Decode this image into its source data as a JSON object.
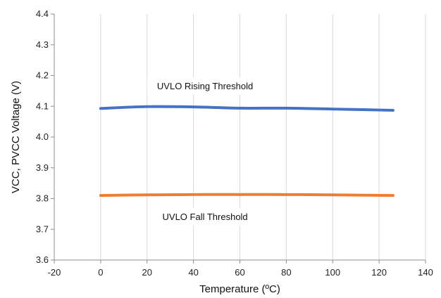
{
  "chart_data": {
    "type": "line",
    "title": "",
    "xlabel": "Temperature (ºC)",
    "ylabel": "VCC, PVCC Voltage (V)",
    "xlim": [
      -20,
      140
    ],
    "ylim": [
      3.6,
      4.4
    ],
    "xticks": [
      -20,
      0,
      20,
      40,
      60,
      80,
      100,
      120,
      140
    ],
    "yticks": [
      3.6,
      3.7,
      3.8,
      3.9,
      4.0,
      4.1,
      4.2,
      4.3,
      4.4
    ],
    "xtick_labels": [
      "-20",
      "0",
      "20",
      "40",
      "60",
      "80",
      "100",
      "120",
      "140"
    ],
    "ytick_labels": [
      "3.6",
      "3.7",
      "3.8",
      "3.9",
      "4.0",
      "4.1",
      "4.2",
      "4.3",
      "4.4"
    ],
    "grid": "vertical",
    "legend": "none",
    "series": [
      {
        "name": "UVLO Rising Threshold",
        "color": "#4472c4",
        "x": [
          0,
          20,
          40,
          60,
          80,
          100,
          126
        ],
        "y": [
          4.093,
          4.099,
          4.098,
          4.094,
          4.094,
          4.091,
          4.087
        ]
      },
      {
        "name": "UVLO Fall Threshold",
        "color": "#ed7d31",
        "x": [
          0,
          20,
          40,
          60,
          80,
          100,
          126
        ],
        "y": [
          3.81,
          3.812,
          3.813,
          3.813,
          3.813,
          3.812,
          3.81
        ]
      }
    ],
    "annotations": [
      {
        "text": "UVLO Rising Threshold",
        "x": 45,
        "y": 4.165
      },
      {
        "text": "UVLO Fall Threshold",
        "x": 45,
        "y": 3.74
      }
    ]
  }
}
